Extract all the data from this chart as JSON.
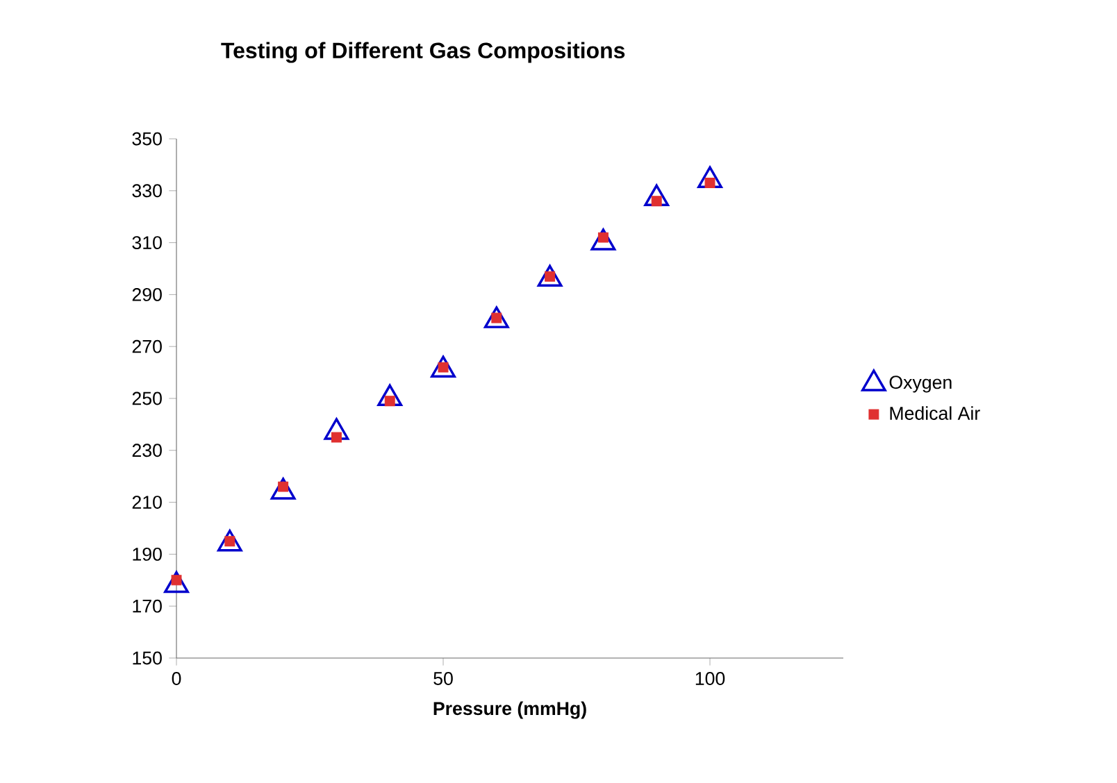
{
  "chart_data": {
    "type": "scatter",
    "title": "Testing of Different Gas Compositions",
    "xlabel": "Pressure (mmHg)",
    "x": [
      0,
      10,
      20,
      30,
      40,
      50,
      60,
      70,
      80,
      90,
      100
    ],
    "series": [
      {
        "name": "Oxygen",
        "color": "#0000cc",
        "marker": "triangle",
        "values": [
          178,
          194,
          214,
          237,
          250,
          261,
          280,
          296,
          310,
          327,
          334
        ]
      },
      {
        "name": "Medical Air",
        "color": "#e03030",
        "marker": "square",
        "values": [
          180,
          195,
          216,
          235,
          249,
          262,
          281,
          297,
          312,
          326,
          333
        ]
      }
    ],
    "xlim": [
      0,
      125
    ],
    "xticks": [
      0,
      50,
      100
    ],
    "ylim": [
      150,
      350
    ],
    "yticks": [
      150,
      170,
      190,
      210,
      230,
      250,
      270,
      290,
      310,
      330,
      350
    ],
    "grid": false,
    "legend": "right"
  }
}
